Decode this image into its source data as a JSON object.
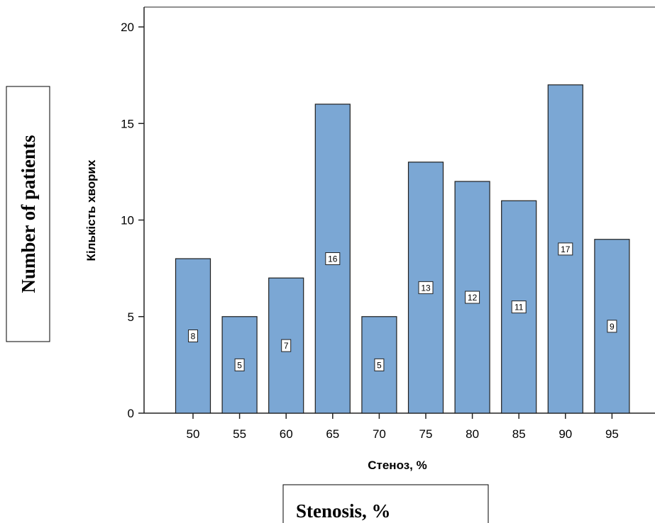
{
  "chart_data": {
    "type": "bar",
    "categories": [
      "50",
      "55",
      "60",
      "65",
      "70",
      "75",
      "80",
      "85",
      "90",
      "95"
    ],
    "values": [
      8,
      5,
      7,
      16,
      5,
      13,
      12,
      11,
      17,
      9
    ],
    "xlabel": "Стеноз, %",
    "ylabel": "Кількість хворих",
    "ylim": [
      0,
      21
    ],
    "yticks": [
      "0",
      "5",
      "10",
      "15",
      "20"
    ],
    "grid": false,
    "colors": {
      "bar_fill": "#7ba7d4",
      "bar_stroke": "#1f1f1f"
    }
  },
  "annotations": {
    "y_translation": "Number of patients",
    "x_translation": "Stenosis, %"
  }
}
